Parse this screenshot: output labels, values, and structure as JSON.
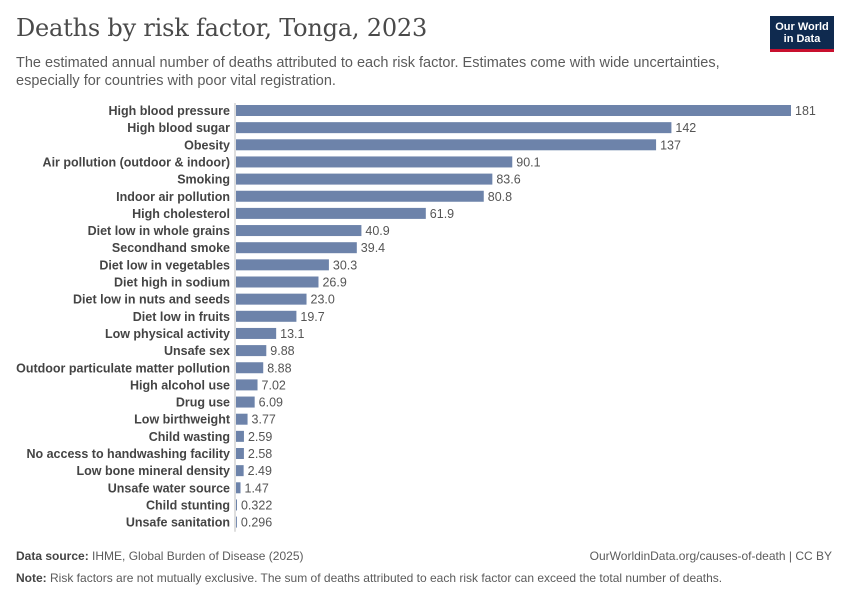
{
  "header": {
    "title": "Deaths by risk factor, Tonga, 2023",
    "subtitle": "The estimated annual number of deaths attributed to each risk factor. Estimates come with wide uncertainties, especially for countries with poor vital registration.",
    "logo_line1": "Our World",
    "logo_line2": "in Data"
  },
  "footer": {
    "source_label": "Data source:",
    "source_text": "IHME, Global Burden of Disease (2025)",
    "link_text": "OurWorldinData.org/causes-of-death | CC BY",
    "note_label": "Note:",
    "note_text": "Risk factors are not mutually exclusive. The sum of deaths attributed to each risk factor can exceed the total number of deaths."
  },
  "colors": {
    "bar": "#6d83aa",
    "logo_bg": "#0f2a4f",
    "logo_accent": "#c8102e"
  },
  "chart_data": {
    "type": "bar",
    "orientation": "horizontal",
    "categories": [
      "High blood pressure",
      "High blood sugar",
      "Obesity",
      "Air pollution (outdoor & indoor)",
      "Smoking",
      "Indoor air pollution",
      "High cholesterol",
      "Diet low in whole grains",
      "Secondhand smoke",
      "Diet low in vegetables",
      "Diet high in sodium",
      "Diet low in nuts and seeds",
      "Diet low in fruits",
      "Low physical activity",
      "Unsafe sex",
      "Outdoor particulate matter pollution",
      "High alcohol use",
      "Drug use",
      "Low birthweight",
      "Child wasting",
      "No access to handwashing facility",
      "Low bone mineral density",
      "Unsafe water source",
      "Child stunting",
      "Unsafe sanitation"
    ],
    "values": [
      181,
      142,
      137,
      90.1,
      83.6,
      80.8,
      61.9,
      40.9,
      39.4,
      30.3,
      26.9,
      23.0,
      19.7,
      13.1,
      9.88,
      8.88,
      7.02,
      6.09,
      3.77,
      2.59,
      2.58,
      2.49,
      1.47,
      0.322,
      0.296
    ],
    "value_labels": [
      "181",
      "142",
      "137",
      "90.1",
      "83.6",
      "80.8",
      "61.9",
      "40.9",
      "39.4",
      "30.3",
      "26.9",
      "23.0",
      "19.7",
      "13.1",
      "9.88",
      "8.88",
      "7.02",
      "6.09",
      "3.77",
      "2.59",
      "2.58",
      "2.49",
      "1.47",
      "0.322",
      "0.296"
    ],
    "title": "Deaths by risk factor, Tonga, 2023",
    "xlim": [
      0,
      181
    ],
    "grid": false,
    "legend": "none"
  }
}
